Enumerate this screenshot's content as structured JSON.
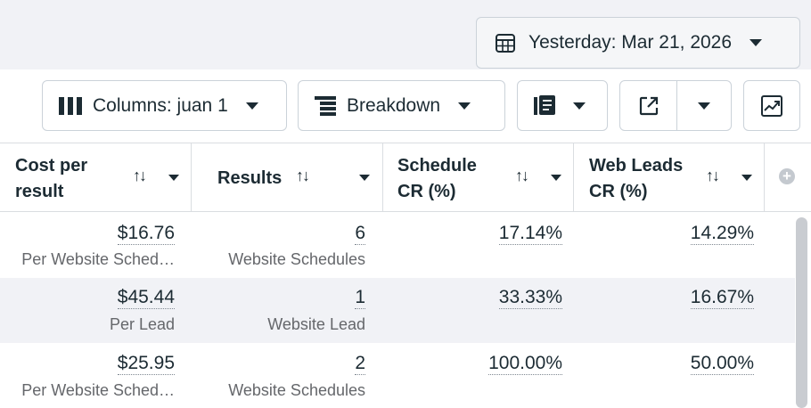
{
  "date_range": {
    "label": "Yesterday: Mar 21, 2026"
  },
  "toolbar": {
    "columns_label": "Columns: juan 1",
    "breakdown_label": "Breakdown"
  },
  "table": {
    "headers": {
      "cost_line1": "Cost per",
      "cost_line2": "result",
      "results": "Results",
      "schedule_line1": "Schedule",
      "schedule_line2": "CR (%)",
      "webleads_line1": "Web Leads",
      "webleads_line2": "CR (%)",
      "sort_glyph": "↑↓",
      "add_glyph": "+"
    },
    "rows": [
      {
        "cost": "$16.76",
        "cost_sub": "Per Website Sched…",
        "results": "6",
        "results_sub": "Website Schedules",
        "schedule_cr": "17.14%",
        "webleads_cr": "14.29%"
      },
      {
        "cost": "$45.44",
        "cost_sub": "Per Lead",
        "results": "1",
        "results_sub": "Website Lead",
        "schedule_cr": "33.33%",
        "webleads_cr": "16.67%"
      },
      {
        "cost": "$25.95",
        "cost_sub": "Per Website Sched…",
        "results": "2",
        "results_sub": "Website Schedules",
        "schedule_cr": "100.00%",
        "webleads_cr": "50.00%"
      }
    ]
  }
}
